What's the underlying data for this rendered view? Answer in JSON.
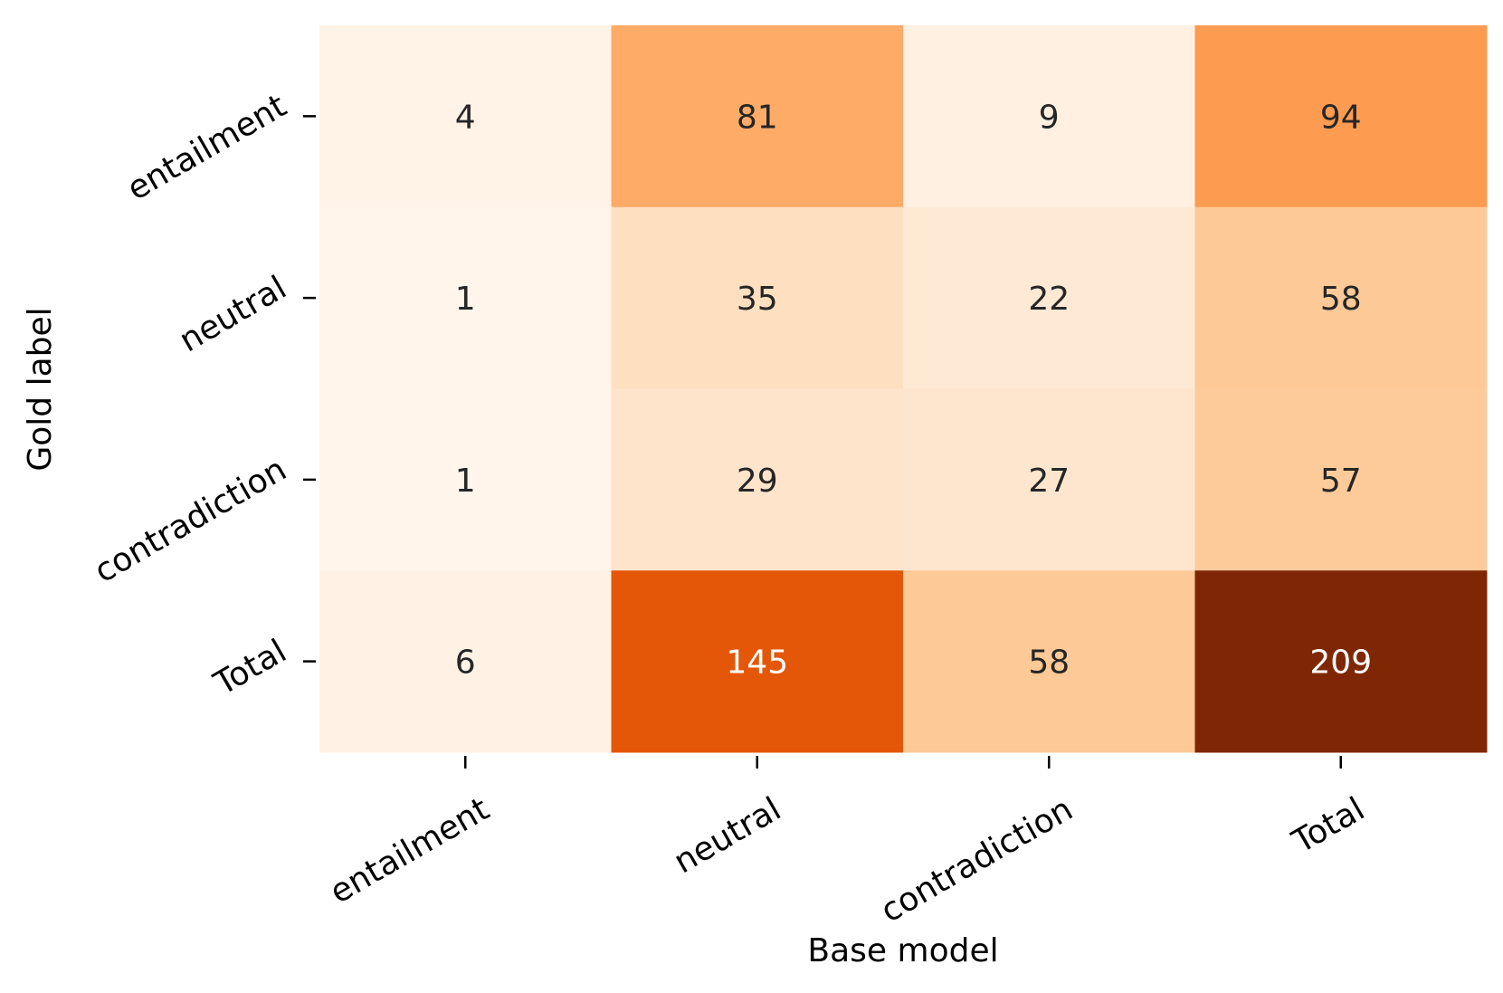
{
  "chart_data": {
    "type": "heatmap",
    "title": "",
    "xlabel": "Base model",
    "ylabel": "Gold label",
    "x_categories": [
      "entailment",
      "neutral",
      "contradiction",
      "Total"
    ],
    "y_categories": [
      "entailment",
      "neutral",
      "contradiction",
      "Total"
    ],
    "values": [
      [
        4,
        81,
        9,
        94
      ],
      [
        1,
        35,
        22,
        58
      ],
      [
        1,
        29,
        27,
        57
      ],
      [
        6,
        145,
        58,
        209
      ]
    ],
    "colormap": "Oranges",
    "vmin": 1,
    "vmax": 209,
    "colorbar": false,
    "grid": false
  }
}
